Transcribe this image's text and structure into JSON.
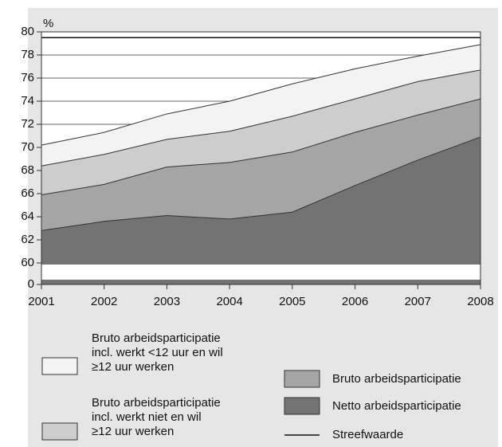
{
  "chart_data": {
    "type": "area",
    "y_label": "%",
    "categories": [
      "2001",
      "2002",
      "2003",
      "2004",
      "2005",
      "2006",
      "2007",
      "2008"
    ],
    "ylim": [
      0,
      80
    ],
    "yticks": [
      0,
      60,
      62,
      64,
      66,
      68,
      70,
      72,
      74,
      76,
      78,
      80
    ],
    "grid": true,
    "series": [
      {
        "name": "Bruto arbeidsparticipatie\nincl. werkt <12 uur en wil\n≥12 uur werken",
        "color": "#f3f3f3",
        "values": [
          70.2,
          71.3,
          72.9,
          74.0,
          75.5,
          76.8,
          77.9,
          78.9
        ]
      },
      {
        "name": "Bruto arbeidsparticipatie\nincl. werkt niet en wil\n≥12 uur werken",
        "color": "#cdcdcd",
        "values": [
          68.4,
          69.4,
          70.7,
          71.4,
          72.7,
          74.2,
          75.7,
          76.7
        ]
      },
      {
        "name": "Bruto arbeidsparticipatie",
        "color": "#a5a5a5",
        "values": [
          65.9,
          66.8,
          68.3,
          68.7,
          69.6,
          71.3,
          72.8,
          74.2
        ]
      },
      {
        "name": "Netto arbeidsparticipatie",
        "color": "#737373",
        "values": [
          62.8,
          63.6,
          64.1,
          63.8,
          64.4,
          66.7,
          68.9,
          70.9
        ]
      },
      {
        "name": "Streefwaarde",
        "color": "#111111",
        "style": "line",
        "values": [
          79.5,
          79.5,
          79.5,
          79.5,
          79.5,
          79.5,
          79.5,
          79.5
        ]
      }
    ]
  }
}
